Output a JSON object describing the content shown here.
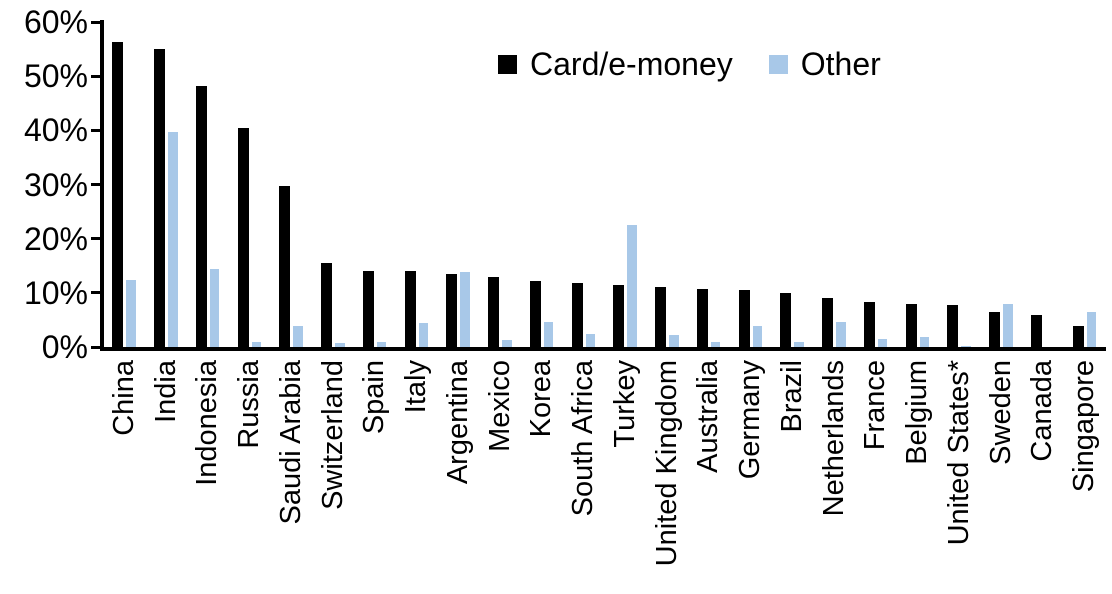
{
  "chart_data": {
    "type": "bar",
    "title": "",
    "xlabel": "",
    "ylabel": "",
    "ylim": [
      0,
      60
    ],
    "y_ticks": [
      "0%",
      "10%",
      "20%",
      "30%",
      "40%",
      "50%",
      "60%"
    ],
    "grid": false,
    "legend_position": "top-center-inside",
    "categories": [
      "China",
      "India",
      "Indonesia",
      "Russia",
      "Saudi Arabia",
      "Switzerland",
      "Spain",
      "Italy",
      "Argentina",
      "Mexico",
      "Korea",
      "South Africa",
      "Turkey",
      "United Kingdom",
      "Australia",
      "Germany",
      "Brazil",
      "Netherlands",
      "France",
      "Belgium",
      "United States*",
      "Sweden",
      "Canada",
      "Singapore"
    ],
    "series": [
      {
        "name": "Card/e-money",
        "color": "#000000",
        "values": [
          56.3,
          55.1,
          48.2,
          40.5,
          29.8,
          15.5,
          14.0,
          14.0,
          13.5,
          13.0,
          12.2,
          11.8,
          11.5,
          11.0,
          10.8,
          10.5,
          10.0,
          9.0,
          8.4,
          7.9,
          7.8,
          6.4,
          5.9,
          3.9
        ]
      },
      {
        "name": "Other",
        "color": "#A8C8E8",
        "values": [
          12.3,
          39.7,
          14.4,
          0.9,
          3.8,
          0.7,
          0.9,
          4.5,
          13.8,
          1.3,
          4.6,
          2.4,
          22.5,
          2.2,
          1.0,
          3.9,
          1.0,
          4.7,
          1.4,
          1.8,
          0.2,
          7.9,
          0.0,
          6.5
        ]
      }
    ]
  }
}
